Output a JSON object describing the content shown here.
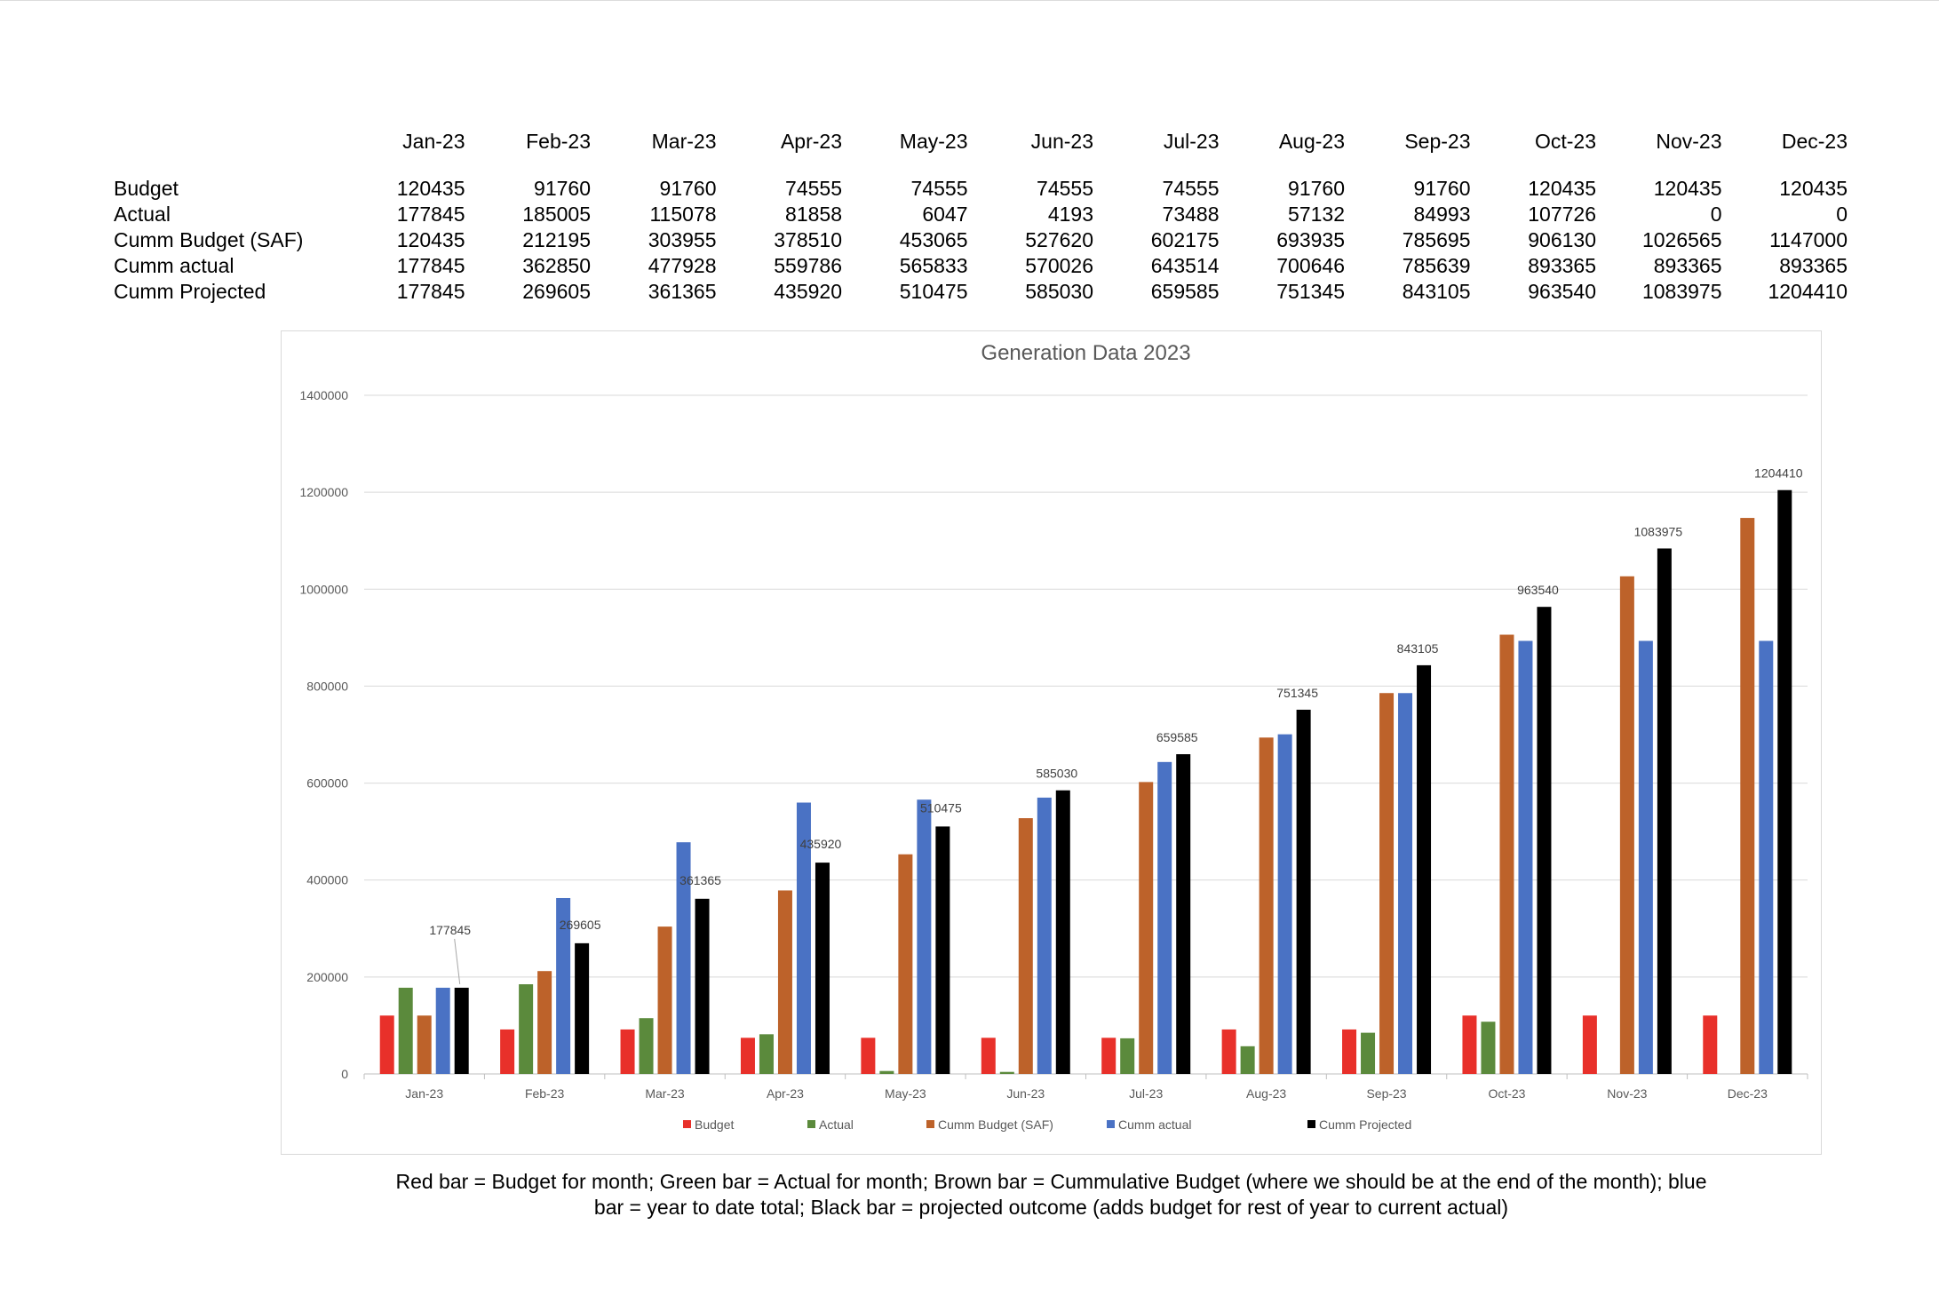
{
  "table": {
    "months": [
      "Jan-23",
      "Feb-23",
      "Mar-23",
      "Apr-23",
      "May-23",
      "Jun-23",
      "Jul-23",
      "Aug-23",
      "Sep-23",
      "Oct-23",
      "Nov-23",
      "Dec-23"
    ],
    "rows": [
      {
        "label": "Budget",
        "values": [
          "120435",
          "91760",
          "91760",
          "74555",
          "74555",
          "74555",
          "74555",
          "91760",
          "91760",
          "120435",
          "120435",
          "120435"
        ]
      },
      {
        "label": "Actual",
        "values": [
          "177845",
          "185005",
          "115078",
          "81858",
          "6047",
          "4193",
          "73488",
          "57132",
          "84993",
          "107726",
          "0",
          "0"
        ]
      },
      {
        "label": "Cumm  Budget (SAF)",
        "values": [
          "120435",
          "212195",
          "303955",
          "378510",
          "453065",
          "527620",
          "602175",
          "693935",
          "785695",
          "906130",
          "1026565",
          "1147000"
        ]
      },
      {
        "label": "Cumm actual",
        "values": [
          "177845",
          "362850",
          "477928",
          "559786",
          "565833",
          "570026",
          "643514",
          "700646",
          "785639",
          "893365",
          "893365",
          "893365"
        ]
      },
      {
        "label": "Cumm Projected",
        "values": [
          "177845",
          "269605",
          "361365",
          "435920",
          "510475",
          "585030",
          "659585",
          "751345",
          "843105",
          "963540",
          "1083975",
          "1204410"
        ]
      }
    ]
  },
  "chart_data": {
    "type": "bar",
    "title": "Generation Data 2023",
    "categories": [
      "Jan-23",
      "Feb-23",
      "Mar-23",
      "Apr-23",
      "May-23",
      "Jun-23",
      "Jul-23",
      "Aug-23",
      "Sep-23",
      "Oct-23",
      "Nov-23",
      "Dec-23"
    ],
    "ylim": [
      0,
      1400000
    ],
    "yticks": [
      0,
      200000,
      400000,
      600000,
      800000,
      1000000,
      1200000,
      1400000
    ],
    "grid": true,
    "legend_position": "bottom",
    "data_labels_series": "Cumm Projected",
    "series": [
      {
        "name": "Budget",
        "color": "#e8302a",
        "values": [
          120435,
          91760,
          91760,
          74555,
          74555,
          74555,
          74555,
          91760,
          91760,
          120435,
          120435,
          120435
        ]
      },
      {
        "name": "Actual",
        "color": "#5b8a3c",
        "values": [
          177845,
          185005,
          115078,
          81858,
          6047,
          4193,
          73488,
          57132,
          84993,
          107726,
          0,
          0
        ]
      },
      {
        "name": "Cumm  Budget (SAF)",
        "color": "#bd622a",
        "values": [
          120435,
          212195,
          303955,
          378510,
          453065,
          527620,
          602175,
          693935,
          785695,
          906130,
          1026565,
          1147000
        ]
      },
      {
        "name": "Cumm actual",
        "color": "#4a72c4",
        "values": [
          177845,
          362850,
          477928,
          559786,
          565833,
          570026,
          643514,
          700646,
          785639,
          893365,
          893365,
          893365
        ]
      },
      {
        "name": "Cumm Projected",
        "color": "#000000",
        "values": [
          177845,
          269605,
          361365,
          435920,
          510475,
          585030,
          659585,
          751345,
          843105,
          963540,
          1083975,
          1204410
        ]
      }
    ]
  },
  "caption": {
    "line1": "Red bar = Budget for month; Green bar = Actual for month; Brown bar = Cummulative Budget (where we should be at the end of the month); blue",
    "line2": "bar = year to date total; Black bar = projected outcome (adds budget for rest of year to current actual)"
  }
}
